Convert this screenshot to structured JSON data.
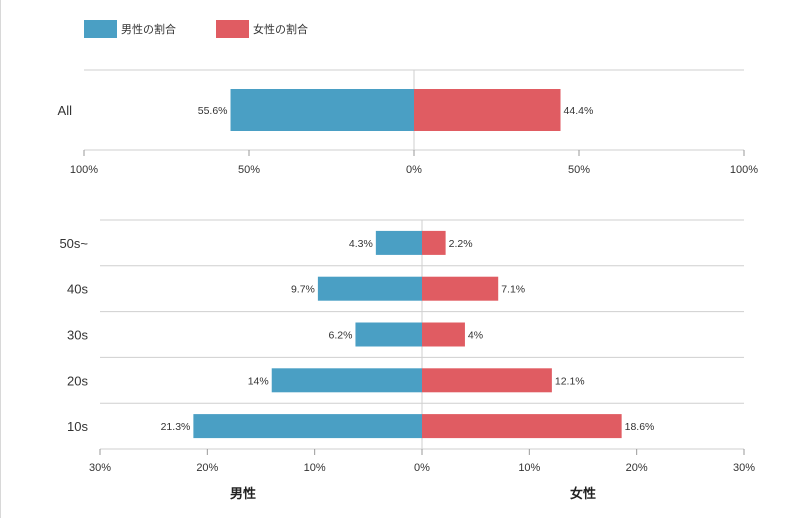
{
  "colors": {
    "male": "#4a9fc4",
    "female": "#e05c62",
    "grid": "#cfcfcf",
    "axis": "#9a9a9a"
  },
  "legend": {
    "male_label": "男性の割合",
    "female_label": "女性の割合"
  },
  "chart_data": [
    {
      "type": "bar",
      "orientation": "horizontal-diverging",
      "categories": [
        "All"
      ],
      "series": [
        {
          "name": "男性の割合",
          "values": [
            55.6
          ],
          "labels": [
            "55.6%"
          ]
        },
        {
          "name": "女性の割合",
          "values": [
            44.4
          ],
          "labels": [
            "44.4%"
          ]
        }
      ],
      "xlim": [
        -100,
        100
      ],
      "ticks": [
        "100%",
        "50%",
        "0%",
        "50%",
        "100%"
      ],
      "grid": true
    },
    {
      "type": "bar",
      "orientation": "horizontal-diverging",
      "categories": [
        "50s~",
        "40s",
        "30s",
        "20s",
        "10s"
      ],
      "series": [
        {
          "name": "男性の割合",
          "values": [
            4.3,
            9.7,
            6.2,
            14,
            21.3
          ],
          "labels": [
            "4.3%",
            "9.7%",
            "6.2%",
            "14%",
            "21.3%"
          ]
        },
        {
          "name": "女性の割合",
          "values": [
            2.2,
            7.1,
            4,
            12.1,
            18.6
          ],
          "labels": [
            "2.2%",
            "7.1%",
            "4%",
            "12.1%",
            "18.6%"
          ]
        }
      ],
      "xlim": [
        -30,
        30
      ],
      "ticks": [
        "30%",
        "20%",
        "10%",
        "0%",
        "10%",
        "20%",
        "30%"
      ],
      "side_labels": {
        "left": "男性",
        "right": "女性"
      },
      "grid": true
    }
  ]
}
